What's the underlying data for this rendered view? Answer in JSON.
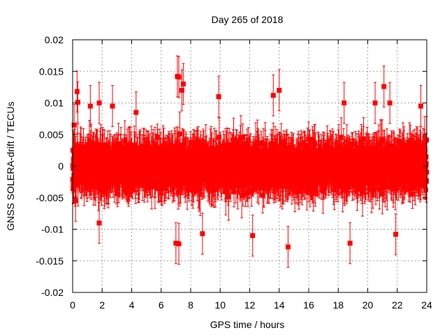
{
  "chart_data": {
    "type": "scatter",
    "title": "Day 265 of 2018",
    "xlabel": "GPS time / hours",
    "ylabel": "GNSS SOLERA-drift / TECUs",
    "xlim": [
      0,
      24
    ],
    "ylim": [
      -0.02,
      0.02
    ],
    "xticks": [
      0,
      2,
      4,
      6,
      8,
      10,
      12,
      14,
      16,
      18,
      20,
      22,
      24
    ],
    "yticks": [
      -0.02,
      -0.015,
      -0.01,
      -0.005,
      0,
      0.005,
      0.01,
      0.015,
      0.02
    ],
    "xtick_labels": [
      "0",
      "2",
      "4",
      "6",
      "8",
      "10",
      "12",
      "14",
      "16",
      "18",
      "20",
      "22",
      "24"
    ],
    "ytick_labels": [
      "-0.02",
      "-0.015",
      "-0.01",
      "-0.005",
      "0",
      "0.005",
      "0.01",
      "0.015",
      "0.02"
    ],
    "grid": true,
    "color": "#ff0000",
    "marker": "square",
    "error_bars": true,
    "typical_error": 0.0025,
    "series_note_count": 2880,
    "sample_points": [
      {
        "x": 0.1,
        "y": 0.0065
      },
      {
        "x": 0.2,
        "y": -0.0055
      },
      {
        "x": 0.3,
        "y": 0.0118
      },
      {
        "x": 0.35,
        "y": 0.0101
      },
      {
        "x": 1.2,
        "y": 0.0095
      },
      {
        "x": 1.8,
        "y": 0.01
      },
      {
        "x": 1.8,
        "y": -0.009
      },
      {
        "x": 2.7,
        "y": 0.0095
      },
      {
        "x": 4.3,
        "y": 0.0085
      },
      {
        "x": 7.1,
        "y": 0.0142
      },
      {
        "x": 7.2,
        "y": 0.0141
      },
      {
        "x": 7.0,
        "y": -0.0122
      },
      {
        "x": 7.2,
        "y": -0.0123
      },
      {
        "x": 7.5,
        "y": 0.013
      },
      {
        "x": 7.4,
        "y": 0.012
      },
      {
        "x": 8.8,
        "y": -0.0107
      },
      {
        "x": 9.9,
        "y": 0.011
      },
      {
        "x": 12.2,
        "y": -0.011
      },
      {
        "x": 13.6,
        "y": 0.0112
      },
      {
        "x": 14.0,
        "y": 0.012
      },
      {
        "x": 14.6,
        "y": -0.0128
      },
      {
        "x": 18.4,
        "y": 0.01
      },
      {
        "x": 18.8,
        "y": -0.0122
      },
      {
        "x": 20.5,
        "y": 0.01
      },
      {
        "x": 21.1,
        "y": 0.0126
      },
      {
        "x": 21.5,
        "y": 0.01
      },
      {
        "x": 21.9,
        "y": -0.0108
      },
      {
        "x": 23.6,
        "y": 0.0095
      },
      {
        "x": 23.9,
        "y": 0.0015
      }
    ],
    "noise_envelope": {
      "typical_abs_max": 0.0075,
      "tail_abs_max": 0.013
    }
  }
}
